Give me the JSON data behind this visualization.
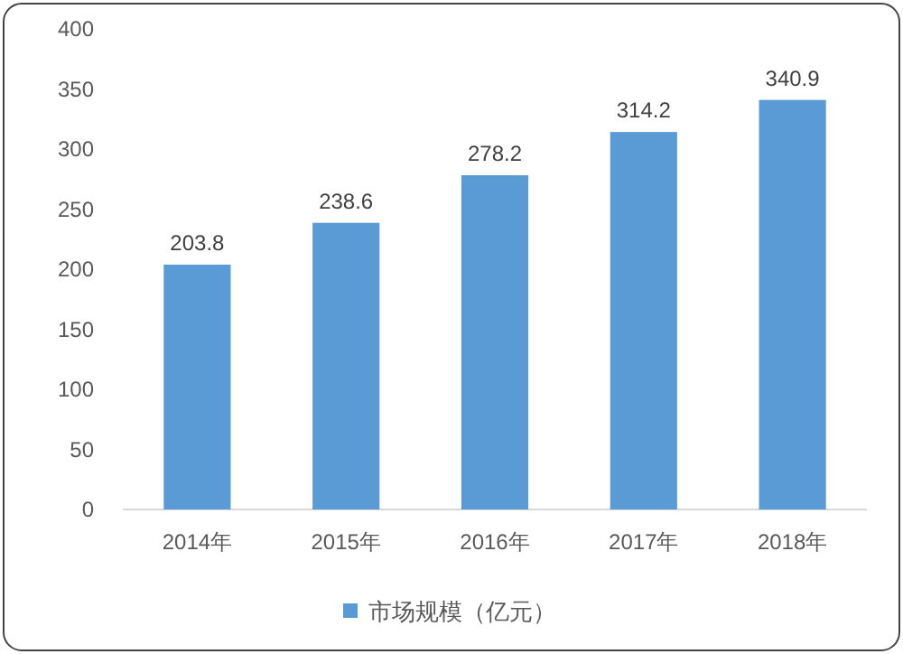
{
  "chart_data": {
    "type": "bar",
    "categories": [
      "2014年",
      "2015年",
      "2016年",
      "2017年",
      "2018年"
    ],
    "series": [
      {
        "name": "市场规模（亿元）",
        "color": "#5b9bd5",
        "values": [
          203.8,
          238.6,
          278.2,
          314.2,
          340.9
        ]
      }
    ],
    "ylim": [
      0,
      400
    ],
    "yticks": [
      0,
      50,
      100,
      150,
      200,
      250,
      300,
      350,
      400
    ],
    "data_labels": true,
    "grid": false,
    "legend": "bottom"
  }
}
